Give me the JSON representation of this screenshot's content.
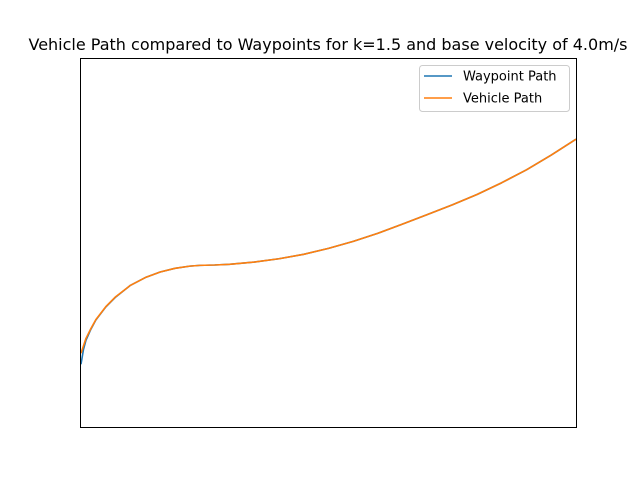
{
  "chart_data": {
    "type": "line",
    "title": "Vehicle Path compared to Waypoints for k=1.5 and base velocity of 4.0m/s",
    "xlabel": "",
    "ylabel": "",
    "xlim": [
      0,
      1
    ],
    "ylim": [
      0,
      1
    ],
    "ticks_visible": false,
    "grid": false,
    "legend_position": "top-right",
    "series": [
      {
        "name": "Waypoint Path",
        "color": "#1f77b4",
        "x": [
          0,
          0.005,
          0.01,
          0.02,
          0.03,
          0.05,
          0.07,
          0.1,
          0.13,
          0.16,
          0.19,
          0.22,
          0.24,
          0.27,
          0.3,
          0.35,
          0.4,
          0.45,
          0.5,
          0.55,
          0.6,
          0.65,
          0.7,
          0.75,
          0.8,
          0.85,
          0.9,
          0.95,
          1.0
        ],
        "y": [
          0.17,
          0.21,
          0.235,
          0.265,
          0.29,
          0.325,
          0.352,
          0.384,
          0.405,
          0.42,
          0.43,
          0.436,
          0.438,
          0.439,
          0.441,
          0.447,
          0.456,
          0.468,
          0.484,
          0.503,
          0.525,
          0.55,
          0.576,
          0.602,
          0.63,
          0.662,
          0.697,
          0.737,
          0.78
        ]
      },
      {
        "name": "Vehicle Path",
        "color": "#ff7f0e",
        "x": [
          0,
          0.005,
          0.01,
          0.02,
          0.03,
          0.05,
          0.07,
          0.1,
          0.13,
          0.16,
          0.19,
          0.22,
          0.24,
          0.27,
          0.3,
          0.35,
          0.4,
          0.45,
          0.5,
          0.55,
          0.6,
          0.65,
          0.7,
          0.75,
          0.8,
          0.85,
          0.9,
          0.95,
          1.0
        ],
        "y": [
          0.2,
          0.22,
          0.24,
          0.267,
          0.291,
          0.326,
          0.353,
          0.384,
          0.405,
          0.42,
          0.43,
          0.436,
          0.438,
          0.439,
          0.441,
          0.447,
          0.456,
          0.468,
          0.484,
          0.503,
          0.525,
          0.55,
          0.576,
          0.602,
          0.63,
          0.662,
          0.697,
          0.737,
          0.78
        ]
      }
    ]
  }
}
